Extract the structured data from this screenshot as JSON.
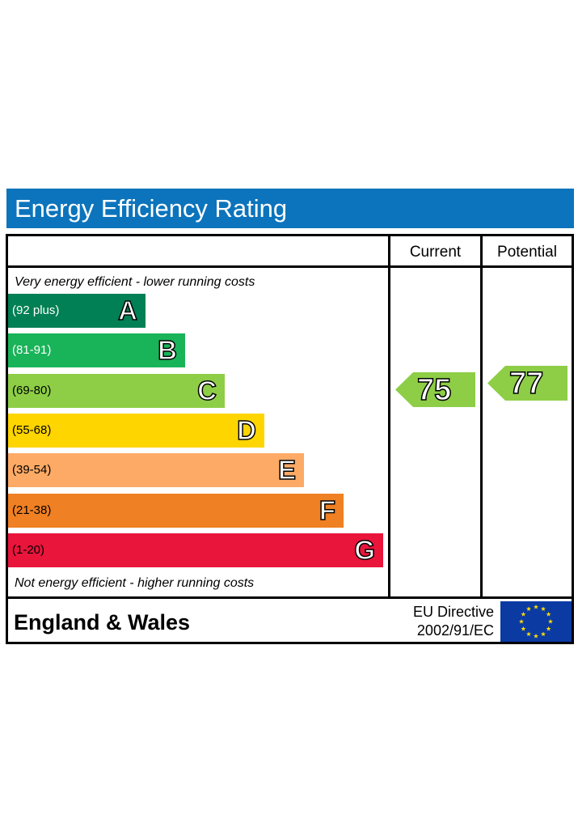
{
  "title": "Energy Efficiency Rating",
  "columns": {
    "current": "Current",
    "potential": "Potential"
  },
  "captions": {
    "top": "Very energy efficient - lower running costs",
    "bottom": "Not energy efficient - higher running costs"
  },
  "footer": {
    "region": "England & Wales",
    "directive_line1": "EU Directive",
    "directive_line2": "2002/91/EC"
  },
  "icons": {
    "eu_flag": "eu-flag-icon"
  },
  "chart_data": {
    "type": "bar",
    "title": "Energy Efficiency Rating",
    "categories": [
      "A",
      "B",
      "C",
      "D",
      "E",
      "F",
      "G"
    ],
    "ranges": [
      "(92 plus)",
      "(81-91)",
      "(69-80)",
      "(55-68)",
      "(39-54)",
      "(21-38)",
      "(1-20)"
    ],
    "colors": [
      "#008054",
      "#19b459",
      "#8dce46",
      "#ffd500",
      "#fcaa65",
      "#ef8023",
      "#e9153b"
    ],
    "range_text_colors": [
      "#ffffff",
      "#ffffff",
      "#000000",
      "#000000",
      "#000000",
      "#000000",
      "#000000"
    ],
    "ratings": {
      "current": {
        "value": 75,
        "band": "C",
        "color": "#8dce46"
      },
      "potential": {
        "value": 77,
        "band": "C",
        "color": "#8dce46"
      }
    }
  }
}
